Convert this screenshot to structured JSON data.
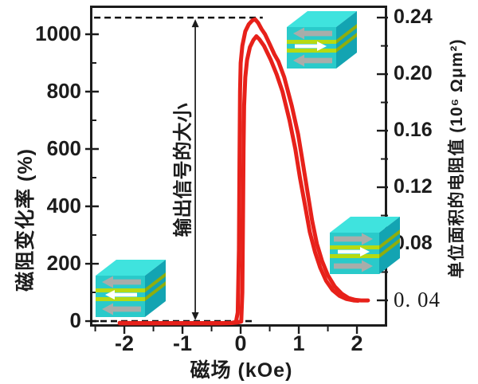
{
  "colors": {
    "background": "#ffffff",
    "axis": "#1c1c1c",
    "curve": "#e7211a",
    "guide": "#111111",
    "cube_top": "#3fe3de",
    "cube_front": "#2acaca",
    "cube_side": "#13a4b2",
    "cube_layer_front": "#b6da12",
    "cube_layer_side": "#8fae0c",
    "arrow_gray": "#a8adaa",
    "arrow_white": "#ffffff"
  },
  "annotation": {
    "label": "输出信号的大小"
  },
  "x_axis": {
    "title": "磁场 (kOe)",
    "ticks": [
      "-2",
      "-1",
      "0",
      "1",
      "2"
    ]
  },
  "left_axis": {
    "title": "磁阻变化率 (%)",
    "ticks": [
      "0",
      "200",
      "400",
      "600",
      "800",
      "1000"
    ]
  },
  "right_axis": {
    "title": "单位面积的电阻值 (10⁶ Ωμm²)",
    "ticks": [
      "0.24",
      "0.20",
      "0.16",
      "0.12",
      "0.08",
      "0. 04"
    ]
  },
  "junction_diagrams": [
    {
      "name": "junction-parallel-left",
      "position": "bottom-left",
      "arrows": [
        "left",
        "left",
        "left"
      ]
    },
    {
      "name": "junction-antiparallel",
      "position": "top-right",
      "arrows": [
        "left",
        "right",
        "left"
      ]
    },
    {
      "name": "junction-parallel-right",
      "position": "right-middle",
      "arrows": [
        "right",
        "right",
        "right"
      ]
    }
  ],
  "chart_data": {
    "type": "line",
    "title": "",
    "xlabel": "磁场 (kOe)",
    "ylabel_left": "磁阻变化率 (%)",
    "ylabel_right": "单位面积的电阻值 (10⁶ Ωμm²)",
    "xlim": [
      -2.59,
      2.52
    ],
    "ylim_left": [
      -19.4,
      1100
    ],
    "ylim_right": [
      0.0214,
      0.2485
    ],
    "x_ticks": [
      -2,
      -1,
      0,
      1,
      2
    ],
    "x_minor_ticks": [
      -2.5,
      -1.5,
      -0.5,
      0.5,
      1.5
    ],
    "left_ticks": [
      0,
      200,
      400,
      600,
      800,
      1000
    ],
    "left_minor_ticks": [
      100,
      300,
      500,
      700,
      900
    ],
    "right_ticks": [
      0.24,
      0.2,
      0.16,
      0.12,
      0.08,
      0.04
    ],
    "right_minor_ticks": [
      0.22,
      0.18,
      0.14,
      0.1,
      0.06
    ],
    "grid": false,
    "legend": "none",
    "guide_lines": [
      {
        "axis": "left",
        "value": 1058,
        "x_range": [
          -2.52,
          0.38
        ],
        "style": "dashed"
      },
      {
        "axis": "left",
        "value": 0,
        "x_range": [
          -2.59,
          0.22
        ],
        "style": "dashed"
      }
    ],
    "annotation_arrow": {
      "x": -0.78,
      "y_range": [
        0,
        1058
      ],
      "label": "输出信号的大小"
    },
    "series": [
      {
        "name": "loop-branch-outer",
        "points": [
          [
            -2.08,
            -6
          ],
          [
            -1.7,
            -7
          ],
          [
            -1.3,
            -7
          ],
          [
            -0.9,
            -7
          ],
          [
            -0.55,
            -7
          ],
          [
            -0.3,
            -7
          ],
          [
            -0.15,
            -6
          ],
          [
            -0.08,
            -3
          ],
          [
            -0.05,
            30
          ],
          [
            -0.03,
            250
          ],
          [
            -0.02,
            550
          ],
          [
            -0.01,
            800
          ],
          [
            0.0,
            900
          ],
          [
            0.03,
            960
          ],
          [
            0.08,
            1010
          ],
          [
            0.14,
            1035
          ],
          [
            0.2,
            1048
          ],
          [
            0.25,
            1052
          ],
          [
            0.3,
            1040
          ],
          [
            0.36,
            1018
          ],
          [
            0.42,
            1000
          ],
          [
            0.5,
            965
          ],
          [
            0.58,
            930
          ],
          [
            0.65,
            905
          ],
          [
            0.75,
            850
          ],
          [
            0.88,
            750
          ],
          [
            0.99,
            650
          ],
          [
            1.07,
            550
          ],
          [
            1.15,
            450
          ],
          [
            1.23,
            350
          ],
          [
            1.31,
            270
          ],
          [
            1.4,
            210
          ],
          [
            1.5,
            160
          ],
          [
            1.62,
            120
          ],
          [
            1.74,
            95
          ],
          [
            1.86,
            80
          ],
          [
            1.97,
            74
          ],
          [
            2.07,
            72
          ],
          [
            2.19,
            72
          ]
        ]
      },
      {
        "name": "loop-branch-inner",
        "points": [
          [
            -2.08,
            -8
          ],
          [
            -1.6,
            -8
          ],
          [
            -1.15,
            -8
          ],
          [
            -0.7,
            -8
          ],
          [
            -0.35,
            -8
          ],
          [
            -0.15,
            -7
          ],
          [
            -0.05,
            -5
          ],
          [
            0.01,
            -2
          ],
          [
            0.03,
            100
          ],
          [
            0.04,
            350
          ],
          [
            0.05,
            600
          ],
          [
            0.06,
            750
          ],
          [
            0.08,
            850
          ],
          [
            0.11,
            910
          ],
          [
            0.16,
            955
          ],
          [
            0.22,
            980
          ],
          [
            0.27,
            993
          ],
          [
            0.32,
            983
          ],
          [
            0.4,
            960
          ],
          [
            0.52,
            910
          ],
          [
            0.62,
            860
          ],
          [
            0.72,
            800
          ],
          [
            0.84,
            700
          ],
          [
            0.94,
            600
          ],
          [
            1.02,
            500
          ],
          [
            1.11,
            400
          ],
          [
            1.19,
            310
          ],
          [
            1.28,
            240
          ],
          [
            1.37,
            185
          ],
          [
            1.47,
            140
          ],
          [
            1.58,
            108
          ],
          [
            1.7,
            88
          ],
          [
            1.82,
            77
          ],
          [
            1.94,
            72
          ],
          [
            2.02,
            71
          ]
        ]
      }
    ]
  }
}
